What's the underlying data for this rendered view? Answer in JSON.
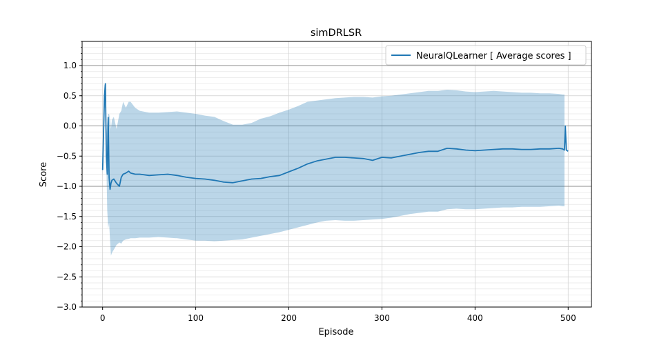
{
  "chart_data": {
    "type": "line",
    "title": "simDRLSR",
    "xlabel": "Episode",
    "ylabel": "Score",
    "xlim": [
      -22,
      525
    ],
    "ylim": [
      -3.0,
      1.4
    ],
    "x_ticks": [
      0,
      100,
      200,
      300,
      400,
      500
    ],
    "y_ticks": [
      1.0,
      0.5,
      0.0,
      -0.5,
      -1.0,
      -1.5,
      -2.0,
      -2.5,
      -3.0
    ],
    "y_tick_labels": [
      "1.0",
      "0.5",
      "0.0",
      "−0.5",
      "−1.0",
      "−1.5",
      "−2.0",
      "−2.5",
      "−3.0"
    ],
    "grid": true,
    "minor_grid_y": true,
    "highlight_lines_y": [
      1.0,
      0.0,
      -1.0
    ],
    "legend_position": "top-right",
    "series": [
      {
        "name": "NeuralQLearner [ Average scores ]",
        "color": "#1f77b4",
        "band_color": "#1f77b4",
        "band_opacity": 0.3,
        "x": [
          0,
          2,
          3,
          4,
          5,
          6,
          7,
          8,
          9,
          10,
          12,
          15,
          18,
          20,
          22,
          25,
          28,
          30,
          35,
          40,
          50,
          60,
          70,
          80,
          90,
          100,
          110,
          120,
          130,
          140,
          150,
          160,
          170,
          180,
          190,
          200,
          210,
          220,
          230,
          240,
          250,
          260,
          270,
          280,
          290,
          300,
          310,
          320,
          330,
          340,
          350,
          360,
          370,
          380,
          390,
          400,
          410,
          420,
          430,
          440,
          450,
          460,
          470,
          480,
          490,
          494,
          496,
          497,
          498,
          500
        ],
        "y": [
          -0.73,
          0.5,
          0.7,
          -0.5,
          -0.8,
          0.14,
          -0.85,
          -1.05,
          -0.95,
          -0.9,
          -0.88,
          -0.95,
          -1.0,
          -0.85,
          -0.8,
          -0.78,
          -0.75,
          -0.78,
          -0.8,
          -0.8,
          -0.82,
          -0.81,
          -0.8,
          -0.82,
          -0.85,
          -0.87,
          -0.88,
          -0.9,
          -0.93,
          -0.94,
          -0.91,
          -0.88,
          -0.87,
          -0.84,
          -0.82,
          -0.76,
          -0.7,
          -0.63,
          -0.58,
          -0.55,
          -0.52,
          -0.52,
          -0.53,
          -0.54,
          -0.57,
          -0.52,
          -0.53,
          -0.5,
          -0.47,
          -0.44,
          -0.42,
          -0.42,
          -0.37,
          -0.38,
          -0.4,
          -0.41,
          -0.4,
          -0.39,
          -0.38,
          -0.38,
          -0.39,
          -0.39,
          -0.38,
          -0.38,
          -0.37,
          -0.38,
          -0.4,
          0.0,
          -0.4,
          -0.42
        ],
        "upper": [
          -0.6,
          0.68,
          0.68,
          -0.2,
          0.05,
          0.2,
          0.2,
          0.1,
          -0.05,
          0.1,
          0.15,
          -0.05,
          0.2,
          0.25,
          0.4,
          0.3,
          0.4,
          0.4,
          0.3,
          0.25,
          0.22,
          0.22,
          0.23,
          0.24,
          0.22,
          0.2,
          0.17,
          0.15,
          0.08,
          0.02,
          0.02,
          0.05,
          0.12,
          0.16,
          0.22,
          0.27,
          0.33,
          0.4,
          0.42,
          0.44,
          0.46,
          0.47,
          0.48,
          0.48,
          0.47,
          0.49,
          0.5,
          0.52,
          0.54,
          0.56,
          0.58,
          0.58,
          0.6,
          0.59,
          0.57,
          0.56,
          0.57,
          0.58,
          0.57,
          0.56,
          0.55,
          0.55,
          0.54,
          0.54,
          0.53,
          0.52,
          0.52,
          null,
          null,
          null
        ],
        "lower": [
          -0.85,
          0.3,
          0.3,
          -0.6,
          -1.4,
          -1.7,
          -1.6,
          -1.9,
          -2.15,
          -2.1,
          -2.05,
          -1.97,
          -1.93,
          -1.95,
          -1.9,
          -1.88,
          -1.87,
          -1.86,
          -1.86,
          -1.85,
          -1.85,
          -1.84,
          -1.85,
          -1.86,
          -1.88,
          -1.9,
          -1.9,
          -1.91,
          -1.9,
          -1.89,
          -1.88,
          -1.85,
          -1.82,
          -1.79,
          -1.76,
          -1.72,
          -1.68,
          -1.64,
          -1.6,
          -1.57,
          -1.56,
          -1.57,
          -1.57,
          -1.56,
          -1.55,
          -1.54,
          -1.52,
          -1.49,
          -1.46,
          -1.44,
          -1.42,
          -1.42,
          -1.38,
          -1.37,
          -1.38,
          -1.38,
          -1.37,
          -1.36,
          -1.35,
          -1.35,
          -1.34,
          -1.34,
          -1.34,
          -1.33,
          -1.32,
          -1.33,
          -1.33,
          null,
          null,
          null
        ]
      }
    ]
  }
}
